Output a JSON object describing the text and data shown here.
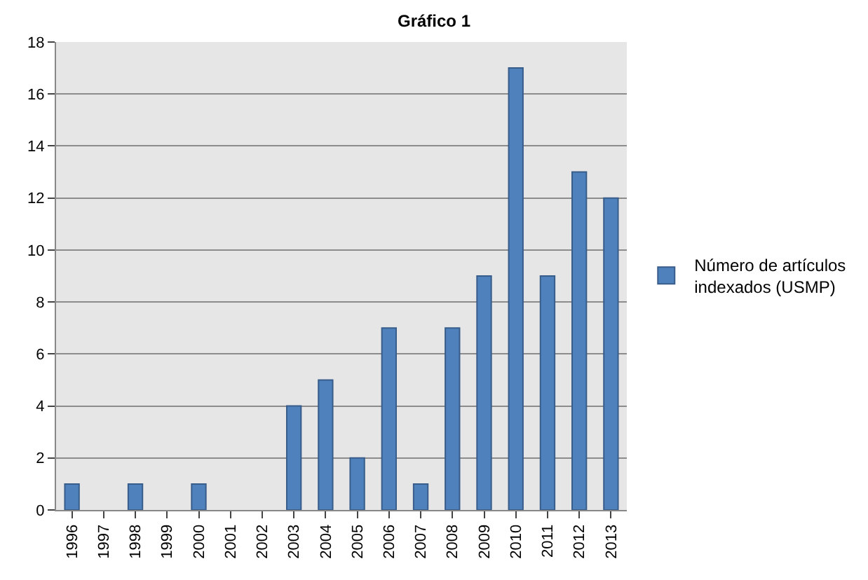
{
  "chart_data": {
    "type": "bar",
    "title": "Gráfico 1",
    "categories": [
      "1996",
      "1997",
      "1998",
      "1999",
      "2000",
      "2001",
      "2002",
      "2003",
      "2004",
      "2005",
      "2006",
      "2007",
      "2008",
      "2009",
      "2010",
      "2011",
      "2012",
      "2013"
    ],
    "series": [
      {
        "name": "Número de artículos indexados (USMP)",
        "color": "#4f81bd",
        "values": [
          1,
          0,
          1,
          0,
          1,
          0,
          0,
          4,
          5,
          2,
          7,
          1,
          7,
          9,
          17,
          9,
          13,
          12
        ]
      }
    ],
    "ylim": [
      0,
      18
    ],
    "yticks": [
      0,
      2,
      4,
      6,
      8,
      10,
      12,
      14,
      16,
      18
    ],
    "grid": "y",
    "legend": "right"
  }
}
